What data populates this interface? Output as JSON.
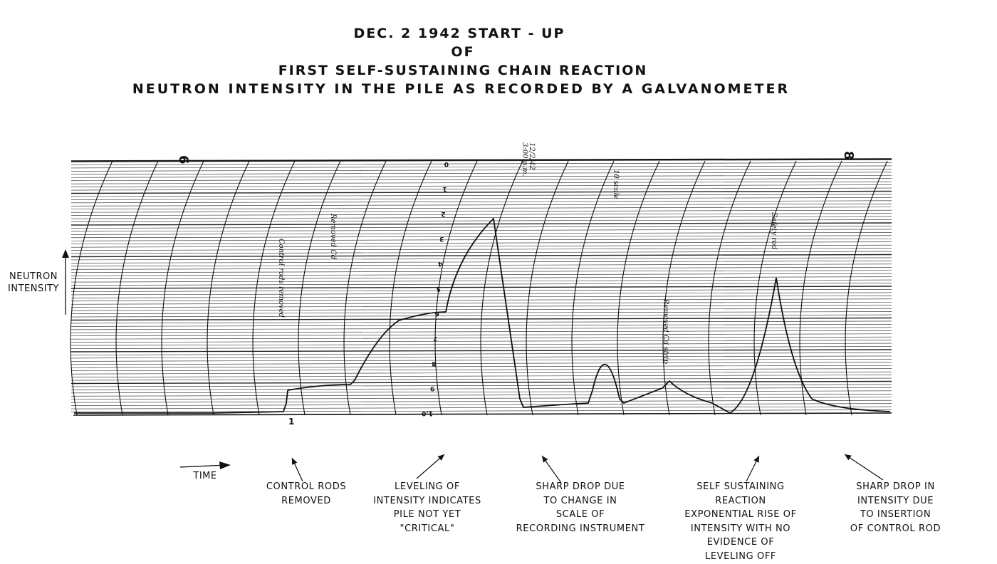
{
  "title": {
    "line1": "DEC. 2  1942    START - UP",
    "line2": "OF",
    "line3": "FIRST  SELF-SUSTAINING  CHAIN  REACTION",
    "line4": "NEUTRON  INTENSITY  IN  THE  PILE   AS  RECORDED  BY  A  GALVANOMETER"
  },
  "y_axis": {
    "line1": "NEUTRON",
    "line2": "INTENSITY"
  },
  "x_axis": {
    "label": "TIME"
  },
  "annotations": [
    {
      "id": "control-rods-removed",
      "lines": [
        "CONTROL  RODS",
        "REMOVED"
      ]
    },
    {
      "id": "leveling",
      "lines": [
        "LEVELING  OF",
        "INTENSITY  INDICATES",
        "PILE  NOT  YET",
        "\"CRITICAL\""
      ]
    },
    {
      "id": "sharp-drop-scale",
      "lines": [
        "SHARP  DROP  DUE",
        "TO  CHANGE  IN",
        "SCALE  OF",
        "RECORDING  INSTRUMENT"
      ]
    },
    {
      "id": "self-sustaining",
      "lines": [
        "SELF  SUSTAINING",
        "REACTION",
        "EXPONENTIAL  RISE  OF",
        "INTENSITY  WITH  NO",
        "EVIDENCE  OF",
        "LEVELING  OFF"
      ]
    },
    {
      "id": "sharp-drop-rod",
      "lines": [
        "SHARP  DROP  IN",
        "INTENSITY  DUE",
        "TO  INSERTION",
        "OF  CONTROL  ROD"
      ]
    }
  ],
  "chart_marks": {
    "top_left_number": "6",
    "top_right_number": "8",
    "bottom_tick": "1",
    "scale_labels": [
      "0",
      "1",
      "2",
      "3",
      "4",
      "5",
      "6",
      "7",
      "8",
      "9",
      "1.0"
    ],
    "handwritten_notes": [
      "12/2/42",
      "3:00 p.m.",
      "Safety rod",
      "Control rods removed",
      "Removed Cd",
      "10 scale",
      "Removed Cd strip"
    ]
  },
  "colors": {
    "ink": "#111111",
    "paper": "#ffffff",
    "grid": "#222222"
  }
}
